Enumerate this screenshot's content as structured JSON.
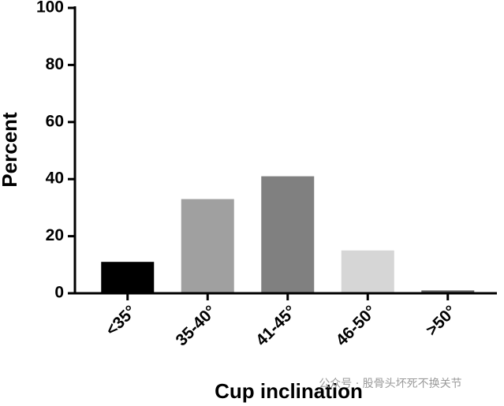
{
  "chart_data": {
    "type": "bar",
    "y_label": "Percent",
    "x_label": "Cup inclination",
    "categories": [
      "<35°",
      "35-40°",
      "41-45°",
      "46-50°",
      ">50°"
    ],
    "values": [
      11,
      33,
      41,
      15,
      1
    ],
    "colors": [
      "#000000",
      "#a0a0a0",
      "#808080",
      "#d6d6d6",
      "#606060"
    ],
    "ylim": [
      0,
      100
    ],
    "yticks": [
      0,
      20,
      40,
      60,
      80,
      100
    ],
    "watermark": "公众号 · 股骨头坏死不换关节"
  }
}
